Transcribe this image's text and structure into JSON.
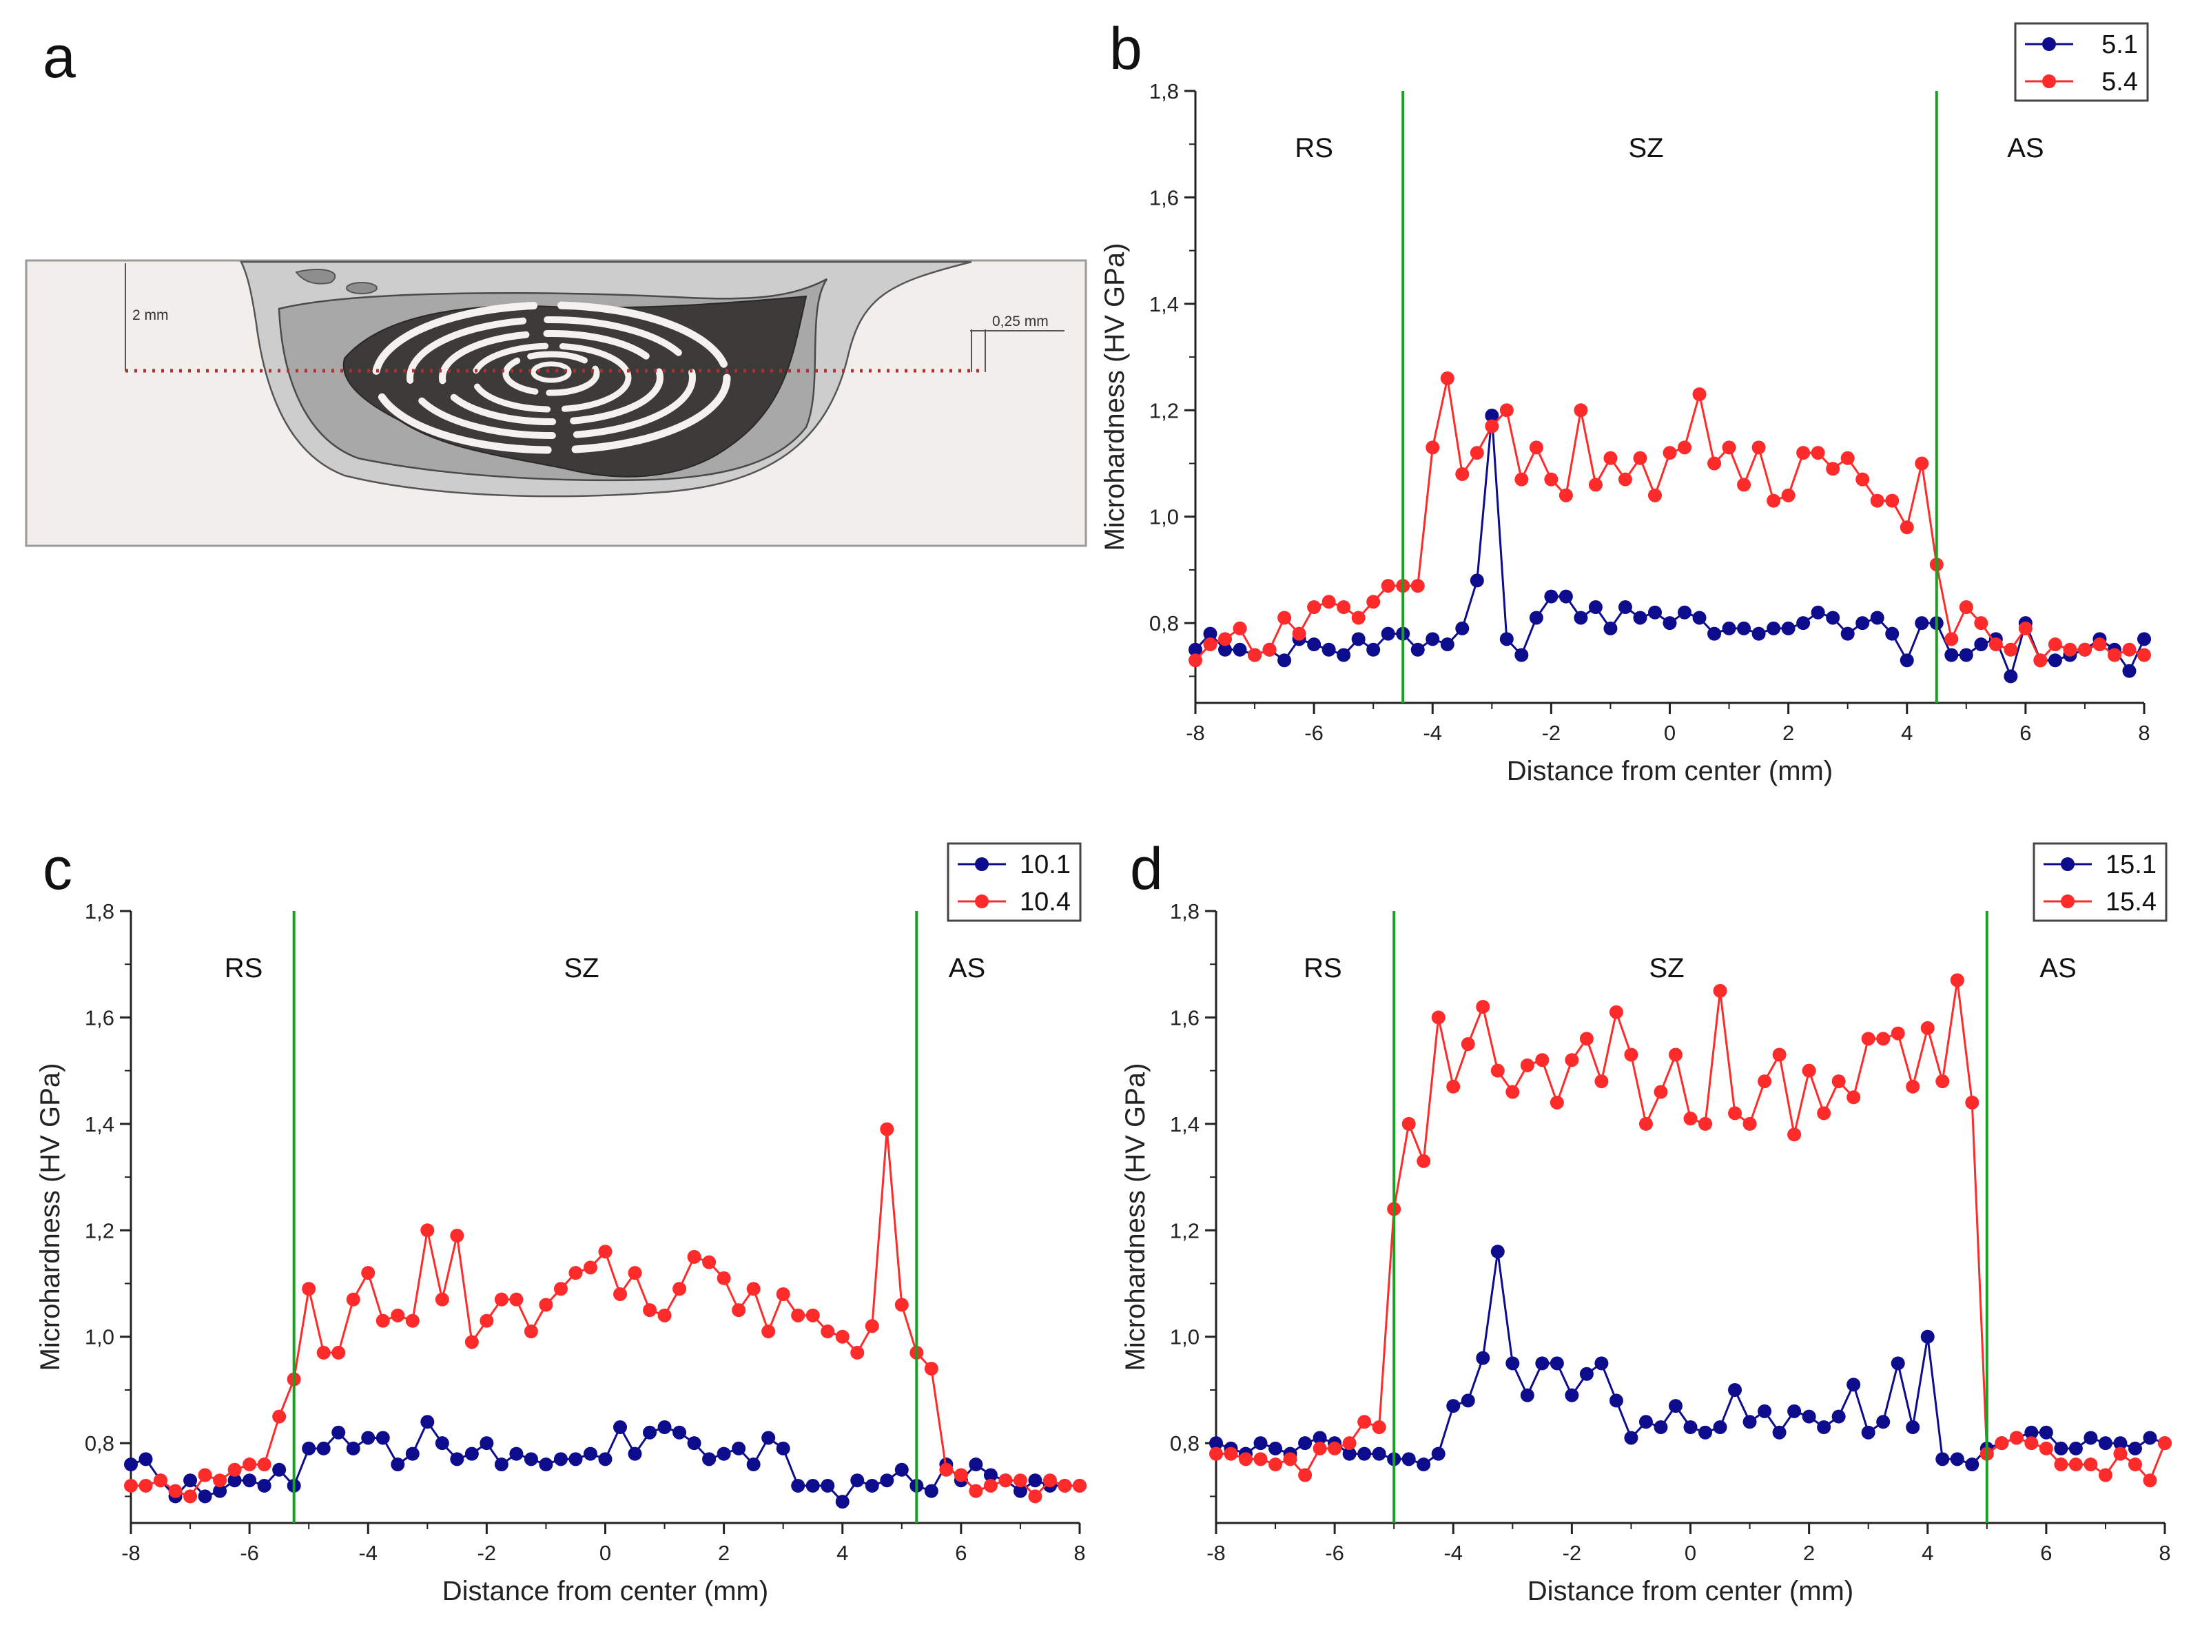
{
  "scheme": {
    "letter": "a",
    "depth_label": "2 mm",
    "offset_label": "0,25 mm"
  },
  "colors": {
    "blue": "#0c0c8c",
    "red": "#ff2a2a",
    "boundary": "#19a21f",
    "scheme_background": "#f1eeec",
    "scheme_frame": "#9a9a9a"
  },
  "chart_data": [
    {
      "letter": "b",
      "type": "line",
      "xlabel": "Distance from center (mm)",
      "ylabel": "Microhardness (HV GPa)",
      "xlim": [
        -8,
        8
      ],
      "ylim": [
        0.65,
        1.8
      ],
      "xticks": [
        -8,
        -6,
        -4,
        -2,
        0,
        2,
        4,
        6,
        8
      ],
      "xtick_labels": [
        "-8",
        "-6",
        "-4",
        "-2",
        "0",
        "2",
        "4",
        "6",
        "8"
      ],
      "yticks": [
        0.8,
        1.0,
        1.2,
        1.4,
        1.6,
        1.8
      ],
      "ytick_labels": [
        "0,8",
        "1,0",
        "1,2",
        "1,4",
        "1,6",
        "1,8"
      ],
      "boundaries": [
        -4.5,
        4.5
      ],
      "regions": [
        {
          "label": "RS",
          "x": -6.0
        },
        {
          "label": "SZ",
          "x": -0.4
        },
        {
          "label": "AS",
          "x": 6.0
        }
      ],
      "x": [
        -8.0,
        -7.75,
        -7.5,
        -7.25,
        -7.0,
        -6.75,
        -6.5,
        -6.25,
        -6.0,
        -5.75,
        -5.5,
        -5.25,
        -5.0,
        -4.75,
        -4.5,
        -4.25,
        -4.0,
        -3.75,
        -3.5,
        -3.25,
        -3.0,
        -2.75,
        -2.5,
        -2.25,
        -2.0,
        -1.75,
        -1.5,
        -1.25,
        -1.0,
        -0.75,
        -0.5,
        -0.25,
        0.0,
        0.25,
        0.5,
        0.75,
        1.0,
        1.25,
        1.5,
        1.75,
        2.0,
        2.25,
        2.5,
        2.75,
        3.0,
        3.25,
        3.5,
        3.75,
        4.0,
        4.25,
        4.5,
        4.75,
        5.0,
        5.25,
        5.5,
        5.75,
        6.0,
        6.25,
        6.5,
        6.75,
        7.0,
        7.25,
        7.5,
        7.75,
        8.0
      ],
      "series": [
        {
          "name": "5.1",
          "color": "#0c0c8c",
          "values": [
            0.75,
            0.78,
            0.75,
            0.75,
            0.74,
            0.75,
            0.73,
            0.77,
            0.76,
            0.75,
            0.74,
            0.77,
            0.75,
            0.78,
            0.78,
            0.75,
            0.77,
            0.76,
            0.79,
            0.88,
            1.19,
            0.77,
            0.74,
            0.81,
            0.85,
            0.85,
            0.81,
            0.83,
            0.79,
            0.83,
            0.81,
            0.82,
            0.8,
            0.82,
            0.81,
            0.78,
            0.79,
            0.79,
            0.78,
            0.79,
            0.79,
            0.8,
            0.82,
            0.81,
            0.78,
            0.8,
            0.81,
            0.78,
            0.73,
            0.8,
            0.8,
            0.74,
            0.74,
            0.76,
            0.77,
            0.7,
            0.8,
            0.73,
            0.73,
            0.74,
            0.75,
            0.77,
            0.75,
            0.71,
            0.77
          ]
        },
        {
          "name": "5.4",
          "color": "#ff2a2a",
          "values": [
            0.73,
            0.76,
            0.77,
            0.79,
            0.74,
            0.75,
            0.81,
            0.78,
            0.83,
            0.84,
            0.83,
            0.81,
            0.84,
            0.87,
            0.87,
            0.87,
            1.13,
            1.26,
            1.08,
            1.12,
            1.17,
            1.2,
            1.07,
            1.13,
            1.07,
            1.04,
            1.2,
            1.06,
            1.11,
            1.07,
            1.11,
            1.04,
            1.12,
            1.13,
            1.23,
            1.1,
            1.13,
            1.06,
            1.13,
            1.03,
            1.04,
            1.12,
            1.12,
            1.09,
            1.11,
            1.07,
            1.03,
            1.03,
            0.98,
            1.1,
            0.91,
            0.77,
            0.83,
            0.8,
            0.76,
            0.75,
            0.79,
            0.73,
            0.76,
            0.75,
            0.75,
            0.76,
            0.74,
            0.75,
            0.74
          ]
        }
      ]
    },
    {
      "letter": "c",
      "type": "line",
      "xlabel": "Distance from center (mm)",
      "ylabel": "Microhardness (HV GPa)",
      "xlim": [
        -8,
        8
      ],
      "ylim": [
        0.65,
        1.8
      ],
      "xticks": [
        -8,
        -6,
        -4,
        -2,
        0,
        2,
        4,
        6,
        8
      ],
      "xtick_labels": [
        "-8",
        "-6",
        "-4",
        "-2",
        "0",
        "2",
        "4",
        "6",
        "8"
      ],
      "yticks": [
        0.8,
        1.0,
        1.2,
        1.4,
        1.6,
        1.8
      ],
      "ytick_labels": [
        "0,8",
        "1,0",
        "1,2",
        "1,4",
        "1,6",
        "1,8"
      ],
      "boundaries": [
        -5.25,
        5.25
      ],
      "regions": [
        {
          "label": "RS",
          "x": -6.1
        },
        {
          "label": "SZ",
          "x": -0.4
        },
        {
          "label": "AS",
          "x": 6.1
        }
      ],
      "x": [
        -8.0,
        -7.75,
        -7.5,
        -7.25,
        -7.0,
        -6.75,
        -6.5,
        -6.25,
        -6.0,
        -5.75,
        -5.5,
        -5.25,
        -5.0,
        -4.75,
        -4.5,
        -4.25,
        -4.0,
        -3.75,
        -3.5,
        -3.25,
        -3.0,
        -2.75,
        -2.5,
        -2.25,
        -2.0,
        -1.75,
        -1.5,
        -1.25,
        -1.0,
        -0.75,
        -0.5,
        -0.25,
        0.0,
        0.25,
        0.5,
        0.75,
        1.0,
        1.25,
        1.5,
        1.75,
        2.0,
        2.25,
        2.5,
        2.75,
        3.0,
        3.25,
        3.5,
        3.75,
        4.0,
        4.25,
        4.5,
        4.75,
        5.0,
        5.25,
        5.5,
        5.75,
        6.0,
        6.25,
        6.5,
        6.75,
        7.0,
        7.25,
        7.5,
        7.75,
        8.0
      ],
      "series": [
        {
          "name": "10.1",
          "color": "#0c0c8c",
          "values": [
            0.76,
            0.77,
            0.73,
            0.7,
            0.73,
            0.7,
            0.71,
            0.73,
            0.73,
            0.72,
            0.75,
            0.72,
            0.79,
            0.79,
            0.82,
            0.79,
            0.81,
            0.81,
            0.76,
            0.78,
            0.84,
            0.8,
            0.77,
            0.78,
            0.8,
            0.76,
            0.78,
            0.77,
            0.76,
            0.77,
            0.77,
            0.78,
            0.77,
            0.83,
            0.78,
            0.82,
            0.83,
            0.82,
            0.8,
            0.77,
            0.78,
            0.79,
            0.76,
            0.81,
            0.79,
            0.72,
            0.72,
            0.72,
            0.69,
            0.73,
            0.72,
            0.73,
            0.75,
            0.72,
            0.71,
            0.76,
            0.73,
            0.76,
            0.74,
            0.73,
            0.71,
            0.73,
            0.72,
            0.72,
            0.72
          ]
        },
        {
          "name": "10.4",
          "color": "#ff2a2a",
          "values": [
            0.72,
            0.72,
            0.73,
            0.71,
            0.7,
            0.74,
            0.73,
            0.75,
            0.76,
            0.76,
            0.85,
            0.92,
            1.09,
            0.97,
            0.97,
            1.07,
            1.12,
            1.03,
            1.04,
            1.03,
            1.2,
            1.07,
            1.19,
            0.99,
            1.03,
            1.07,
            1.07,
            1.01,
            1.06,
            1.09,
            1.12,
            1.13,
            1.16,
            1.08,
            1.12,
            1.05,
            1.04,
            1.09,
            1.15,
            1.14,
            1.11,
            1.05,
            1.09,
            1.01,
            1.08,
            1.04,
            1.04,
            1.01,
            1.0,
            0.97,
            1.02,
            1.39,
            1.06,
            0.97,
            0.94,
            0.75,
            0.74,
            0.71,
            0.72,
            0.73,
            0.73,
            0.7,
            0.73,
            0.72,
            0.72
          ]
        }
      ]
    },
    {
      "letter": "d",
      "type": "line",
      "xlabel": "Distance from center (mm)",
      "ylabel": "Microhardness (HV GPa)",
      "xlim": [
        -8,
        8
      ],
      "ylim": [
        0.65,
        1.8
      ],
      "xticks": [
        -8,
        -6,
        -4,
        -2,
        0,
        2,
        4,
        6,
        8
      ],
      "xtick_labels": [
        "-8",
        "-6",
        "-4",
        "-2",
        "0",
        "2",
        "4",
        "6",
        "8"
      ],
      "yticks": [
        0.8,
        1.0,
        1.2,
        1.4,
        1.6,
        1.8
      ],
      "ytick_labels": [
        "0,8",
        "1,0",
        "1,2",
        "1,4",
        "1,6",
        "1,8"
      ],
      "boundaries": [
        -5.0,
        5.0
      ],
      "regions": [
        {
          "label": "RS",
          "x": -6.2
        },
        {
          "label": "SZ",
          "x": -0.4
        },
        {
          "label": "AS",
          "x": 6.2
        }
      ],
      "x": [
        -8.0,
        -7.75,
        -7.5,
        -7.25,
        -7.0,
        -6.75,
        -6.5,
        -6.25,
        -6.0,
        -5.75,
        -5.5,
        -5.25,
        -5.0,
        -4.75,
        -4.5,
        -4.25,
        -4.0,
        -3.75,
        -3.5,
        -3.25,
        -3.0,
        -2.75,
        -2.5,
        -2.25,
        -2.0,
        -1.75,
        -1.5,
        -1.25,
        -1.0,
        -0.75,
        -0.5,
        -0.25,
        0.0,
        0.25,
        0.5,
        0.75,
        1.0,
        1.25,
        1.5,
        1.75,
        2.0,
        2.25,
        2.5,
        2.75,
        3.0,
        3.25,
        3.5,
        3.75,
        4.0,
        4.25,
        4.5,
        4.75,
        5.0,
        5.25,
        5.5,
        5.75,
        6.0,
        6.25,
        6.5,
        6.75,
        7.0,
        7.25,
        7.5,
        7.75,
        8.0
      ],
      "series": [
        {
          "name": "15.1",
          "color": "#0c0c8c",
          "values": [
            0.8,
            0.79,
            0.78,
            0.8,
            0.79,
            0.78,
            0.8,
            0.81,
            0.8,
            0.78,
            0.78,
            0.78,
            0.77,
            0.77,
            0.76,
            0.78,
            0.87,
            0.88,
            0.96,
            1.16,
            0.95,
            0.89,
            0.95,
            0.95,
            0.89,
            0.93,
            0.95,
            0.88,
            0.81,
            0.84,
            0.83,
            0.87,
            0.83,
            0.82,
            0.83,
            0.9,
            0.84,
            0.86,
            0.82,
            0.86,
            0.85,
            0.83,
            0.85,
            0.91,
            0.82,
            0.84,
            0.95,
            0.83,
            1.0,
            0.77,
            0.77,
            0.76,
            0.79,
            0.8,
            0.81,
            0.82,
            0.82,
            0.79,
            0.79,
            0.81,
            0.8,
            0.8,
            0.79,
            0.81,
            0.8
          ]
        },
        {
          "name": "15.4",
          "color": "#ff2a2a",
          "values": [
            0.78,
            0.78,
            0.77,
            0.77,
            0.76,
            0.77,
            0.74,
            0.79,
            0.79,
            0.8,
            0.84,
            0.83,
            1.24,
            1.4,
            1.33,
            1.6,
            1.47,
            1.55,
            1.62,
            1.5,
            1.46,
            1.51,
            1.52,
            1.44,
            1.52,
            1.56,
            1.48,
            1.61,
            1.53,
            1.4,
            1.46,
            1.53,
            1.41,
            1.4,
            1.65,
            1.42,
            1.4,
            1.48,
            1.53,
            1.38,
            1.5,
            1.42,
            1.48,
            1.45,
            1.56,
            1.56,
            1.57,
            1.47,
            1.58,
            1.48,
            1.67,
            1.44,
            0.78,
            0.8,
            0.81,
            0.8,
            0.79,
            0.76,
            0.76,
            0.76,
            0.74,
            0.78,
            0.76,
            0.73,
            0.8
          ]
        }
      ]
    }
  ]
}
